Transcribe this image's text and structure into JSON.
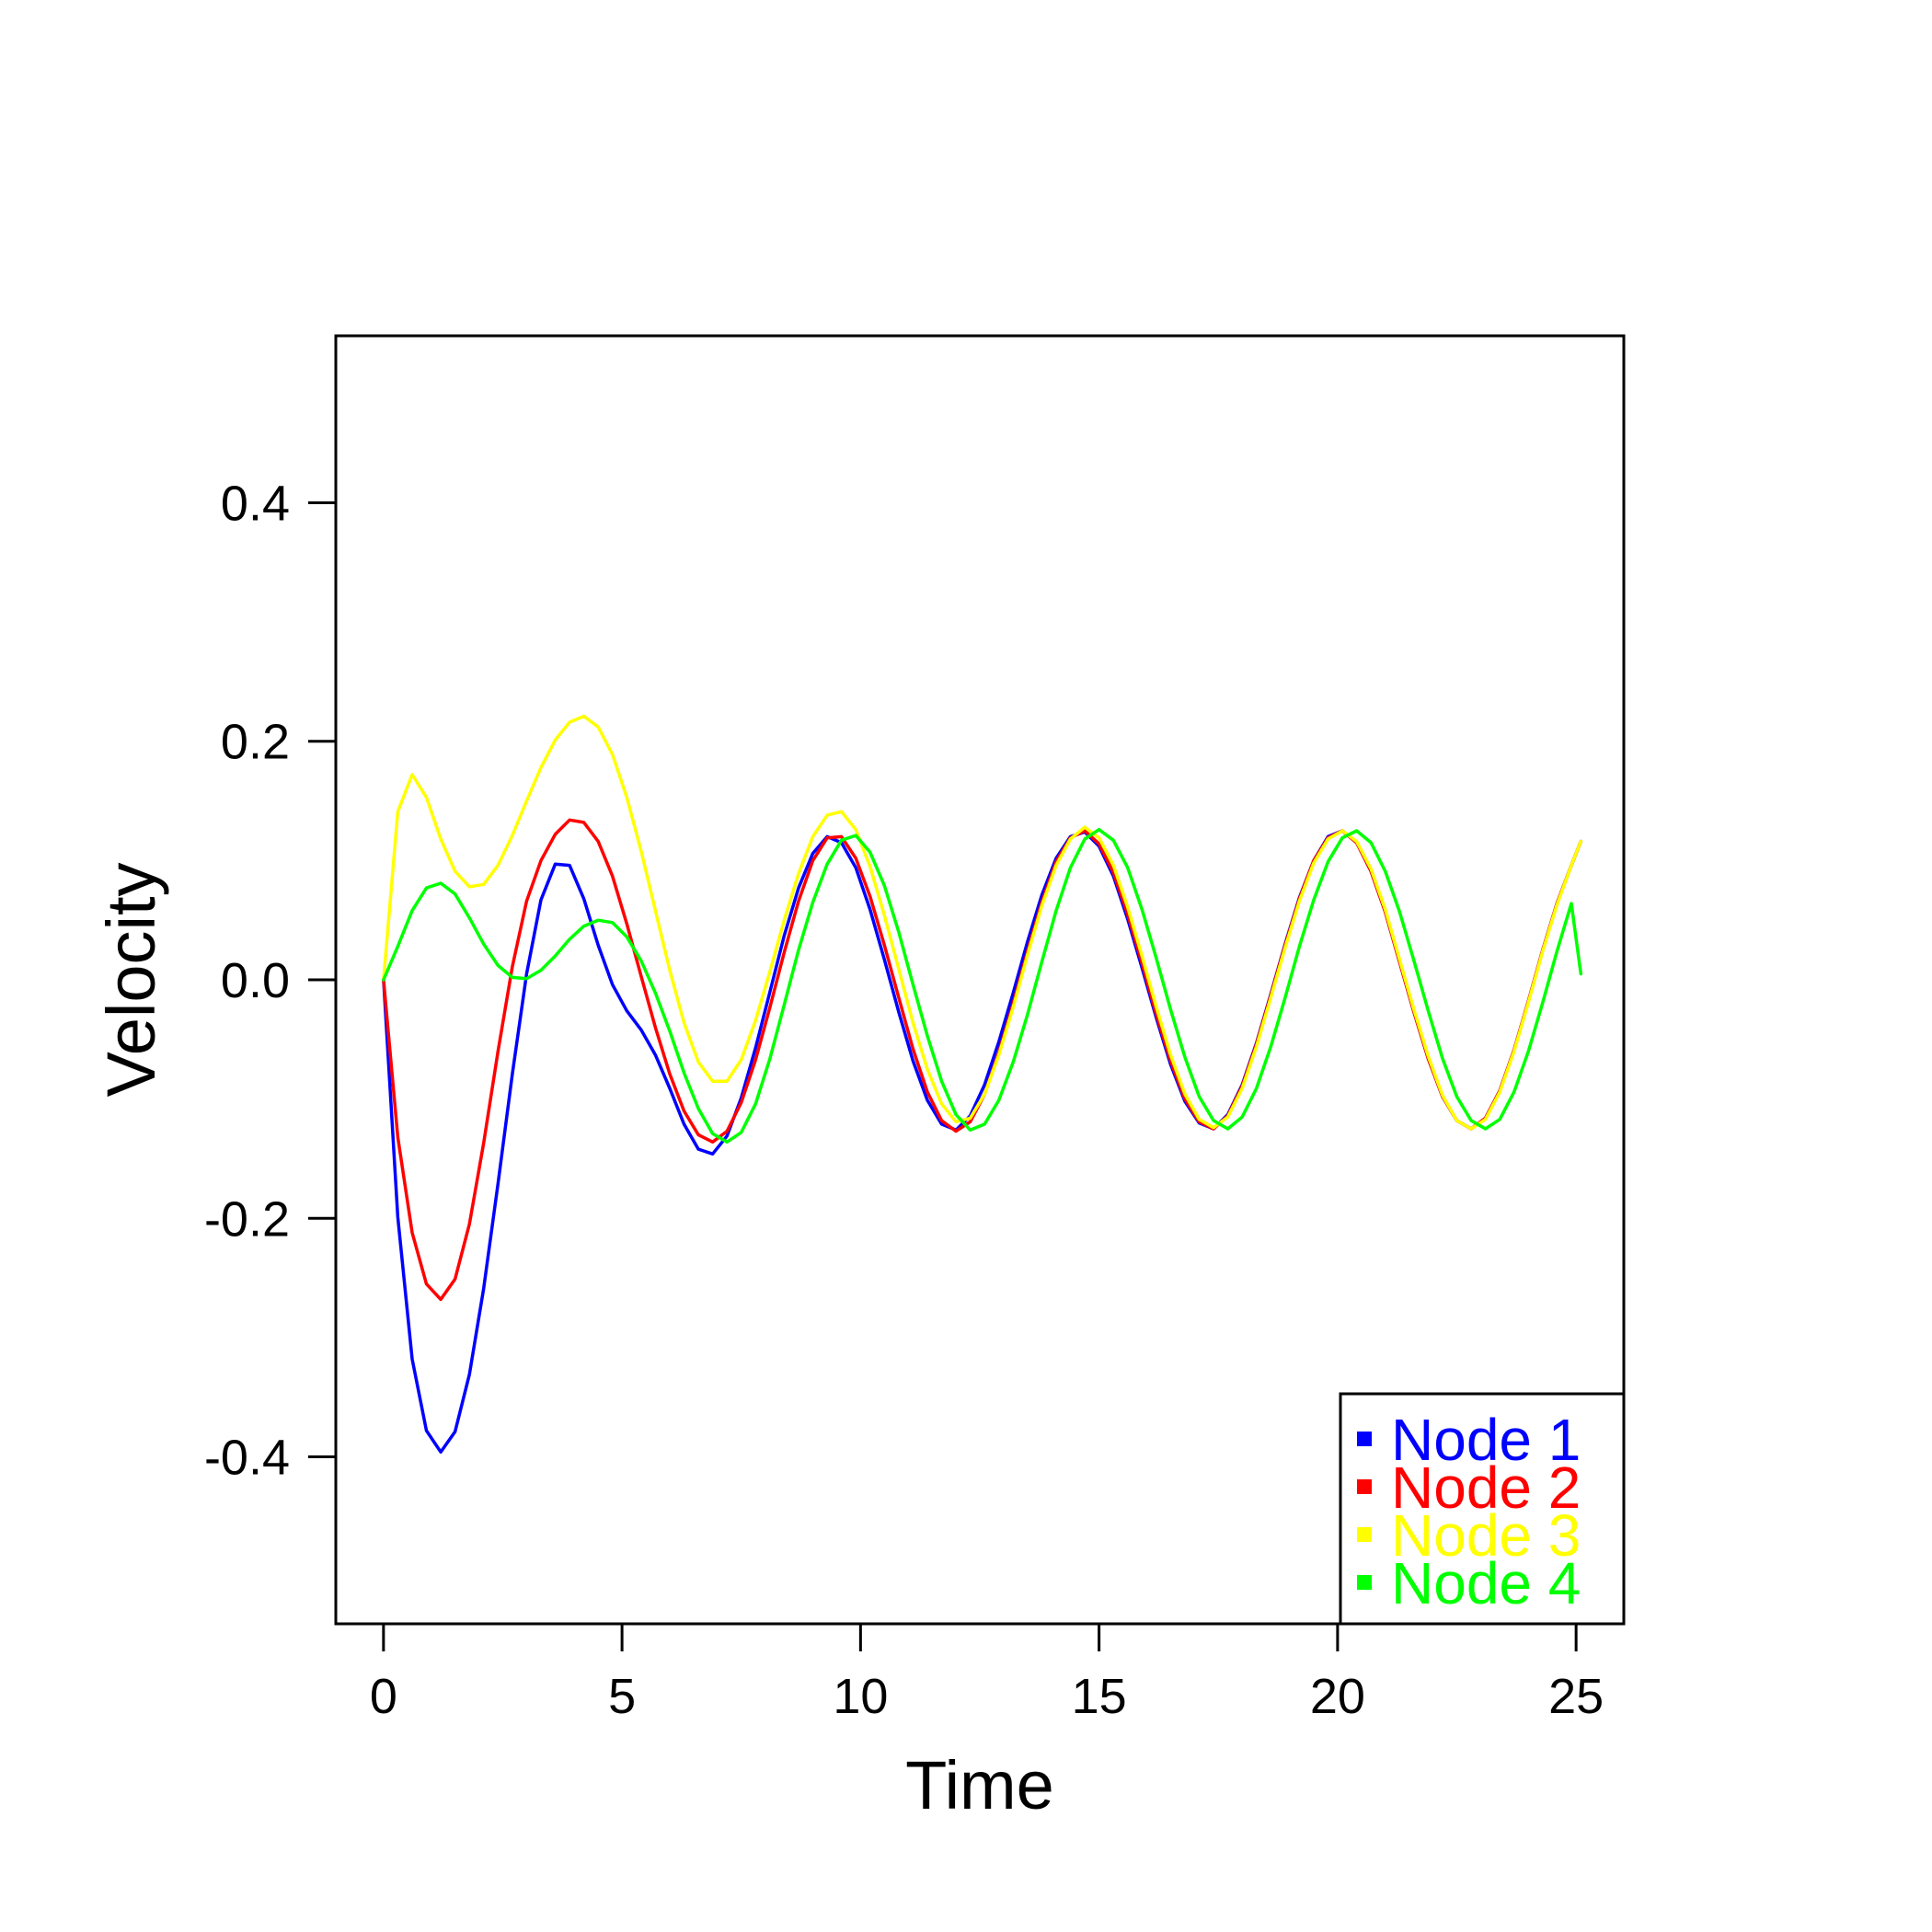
{
  "chart_data": {
    "type": "line",
    "xlabel": "Time",
    "ylabel": "Velocity",
    "xlim": [
      -1,
      26
    ],
    "ylim": [
      -0.54,
      0.54
    ],
    "xticks": [
      0,
      5,
      10,
      15,
      20,
      25
    ],
    "xtick_labels": [
      "0",
      "5",
      "10",
      "15",
      "20",
      "25"
    ],
    "yticks": [
      -0.4,
      -0.2,
      0.0,
      0.2,
      0.4
    ],
    "ytick_labels": [
      "-0.4",
      "-0.2",
      "0.0",
      "0.2",
      "0.4"
    ],
    "grid": false,
    "legend_position": "bottom-right",
    "series": [
      {
        "name": "Node 1",
        "color": "#0000ff",
        "x": [
          0,
          0.3,
          0.6,
          0.9,
          1.2,
          1.5,
          1.8,
          2.1,
          2.4,
          2.7,
          3.0,
          3.3,
          3.6,
          3.9,
          4.2,
          4.5,
          4.8,
          5.1,
          5.4,
          5.7,
          6.0,
          6.3,
          6.6,
          6.9,
          7.2,
          7.5,
          7.8,
          8.1,
          8.4,
          8.7,
          9.0,
          9.3,
          9.6,
          9.9,
          10.2,
          10.5,
          10.8,
          11.1,
          11.4,
          11.7,
          12.0,
          12.3,
          12.6,
          12.9,
          13.2,
          13.5,
          13.8,
          14.1,
          14.4,
          14.7,
          15.0,
          15.3,
          15.6,
          15.9,
          16.2,
          16.5,
          16.8,
          17.1,
          17.4,
          17.7,
          18.0,
          18.3,
          18.6,
          18.9,
          19.2,
          19.5,
          19.8,
          20.1,
          20.4,
          20.7,
          21.0,
          21.3,
          21.6,
          21.9,
          22.2,
          22.5,
          22.8,
          23.1,
          23.4,
          23.7,
          24.0,
          24.3,
          24.6,
          24.9,
          25.1
        ],
        "y": [
          0.0,
          -0.199,
          -0.318,
          -0.378,
          -0.396,
          -0.379,
          -0.331,
          -0.259,
          -0.171,
          -0.079,
          0.005,
          0.067,
          0.097,
          0.096,
          0.068,
          0.029,
          -0.004,
          -0.026,
          -0.042,
          -0.063,
          -0.091,
          -0.121,
          -0.142,
          -0.146,
          -0.131,
          -0.099,
          -0.057,
          -0.01,
          0.037,
          0.077,
          0.106,
          0.12,
          0.115,
          0.094,
          0.059,
          0.017,
          -0.027,
          -0.068,
          -0.101,
          -0.121,
          -0.126,
          -0.114,
          -0.088,
          -0.052,
          -0.011,
          0.032,
          0.071,
          0.102,
          0.12,
          0.124,
          0.112,
          0.087,
          0.051,
          0.01,
          -0.032,
          -0.071,
          -0.102,
          -0.12,
          -0.125,
          -0.113,
          -0.088,
          -0.053,
          -0.012,
          0.03,
          0.069,
          0.1,
          0.12,
          0.125,
          0.115,
          0.091,
          0.057,
          0.015,
          -0.027,
          -0.066,
          -0.098,
          -0.118,
          -0.125,
          -0.116,
          -0.093,
          -0.059,
          -0.018,
          0.025,
          0.064,
          0.096,
          0.116
        ]
      },
      {
        "name": "Node 2",
        "color": "#ff0000",
        "x": [
          0,
          0.3,
          0.6,
          0.9,
          1.2,
          1.5,
          1.8,
          2.1,
          2.4,
          2.7,
          3.0,
          3.3,
          3.6,
          3.9,
          4.2,
          4.5,
          4.8,
          5.1,
          5.4,
          5.7,
          6.0,
          6.3,
          6.6,
          6.9,
          7.2,
          7.5,
          7.8,
          8.1,
          8.4,
          8.7,
          9.0,
          9.3,
          9.6,
          9.9,
          10.2,
          10.5,
          10.8,
          11.1,
          11.4,
          11.7,
          12.0,
          12.3,
          12.6,
          12.9,
          13.2,
          13.5,
          13.8,
          14.1,
          14.4,
          14.7,
          15.0,
          15.3,
          15.6,
          15.9,
          16.2,
          16.5,
          16.8,
          17.1,
          17.4,
          17.7,
          18.0,
          18.3,
          18.6,
          18.9,
          19.2,
          19.5,
          19.8,
          20.1,
          20.4,
          20.7,
          21.0,
          21.3,
          21.6,
          21.9,
          22.2,
          22.5,
          22.8,
          23.1,
          23.4,
          23.7,
          24.0,
          24.3,
          24.6,
          24.9,
          25.1
        ],
        "y": [
          0.0,
          -0.132,
          -0.212,
          -0.255,
          -0.268,
          -0.251,
          -0.205,
          -0.137,
          -0.06,
          0.011,
          0.066,
          0.1,
          0.122,
          0.134,
          0.132,
          0.116,
          0.087,
          0.047,
          0.003,
          -0.04,
          -0.079,
          -0.11,
          -0.13,
          -0.136,
          -0.127,
          -0.103,
          -0.067,
          -0.023,
          0.023,
          0.066,
          0.1,
          0.119,
          0.12,
          0.102,
          0.07,
          0.029,
          -0.015,
          -0.058,
          -0.094,
          -0.118,
          -0.127,
          -0.119,
          -0.096,
          -0.061,
          -0.02,
          0.024,
          0.065,
          0.099,
          0.119,
          0.125,
          0.114,
          0.09,
          0.055,
          0.014,
          -0.029,
          -0.068,
          -0.1,
          -0.119,
          -0.125,
          -0.114,
          -0.089,
          -0.054,
          -0.013,
          0.029,
          0.068,
          0.1,
          0.119,
          0.125,
          0.115,
          0.091,
          0.057,
          0.015,
          -0.027,
          -0.066,
          -0.098,
          -0.118,
          -0.125,
          -0.116,
          -0.093,
          -0.059,
          -0.018,
          0.025,
          0.064,
          0.096,
          0.116
        ]
      },
      {
        "name": "Node 3",
        "color": "#ffff00",
        "x": [
          0,
          0.3,
          0.6,
          0.9,
          1.2,
          1.5,
          1.8,
          2.1,
          2.4,
          2.7,
          3.0,
          3.3,
          3.6,
          3.9,
          4.2,
          4.5,
          4.8,
          5.1,
          5.4,
          5.7,
          6.0,
          6.3,
          6.6,
          6.9,
          7.2,
          7.5,
          7.8,
          8.1,
          8.4,
          8.7,
          9.0,
          9.3,
          9.6,
          9.9,
          10.2,
          10.5,
          10.8,
          11.1,
          11.4,
          11.7,
          12.0,
          12.3,
          12.6,
          12.9,
          13.2,
          13.5,
          13.8,
          14.1,
          14.4,
          14.7,
          15.0,
          15.3,
          15.6,
          15.9,
          16.2,
          16.5,
          16.8,
          17.1,
          17.4,
          17.7,
          18.0,
          18.3,
          18.6,
          18.9,
          19.2,
          19.5,
          19.8,
          20.1,
          20.4,
          20.7,
          21.0,
          21.3,
          21.6,
          21.9,
          22.2,
          22.5,
          22.8,
          23.1,
          23.4,
          23.7,
          24.0,
          24.3,
          24.6,
          24.9,
          25.1
        ],
        "y": [
          0.0,
          0.141,
          0.172,
          0.153,
          0.118,
          0.091,
          0.078,
          0.08,
          0.096,
          0.121,
          0.15,
          0.178,
          0.201,
          0.216,
          0.221,
          0.212,
          0.189,
          0.153,
          0.108,
          0.058,
          0.008,
          -0.036,
          -0.069,
          -0.085,
          -0.085,
          -0.067,
          -0.034,
          0.007,
          0.05,
          0.089,
          0.12,
          0.138,
          0.141,
          0.126,
          0.095,
          0.054,
          0.009,
          -0.036,
          -0.075,
          -0.104,
          -0.119,
          -0.116,
          -0.096,
          -0.063,
          -0.023,
          0.021,
          0.062,
          0.096,
          0.118,
          0.128,
          0.119,
          0.096,
          0.061,
          0.02,
          -0.023,
          -0.063,
          -0.096,
          -0.117,
          -0.124,
          -0.115,
          -0.091,
          -0.056,
          -0.015,
          0.027,
          0.066,
          0.098,
          0.118,
          0.125,
          0.116,
          0.093,
          0.059,
          0.017,
          -0.025,
          -0.064,
          -0.097,
          -0.118,
          -0.125,
          -0.117,
          -0.094,
          -0.06,
          -0.019,
          0.024,
          0.063,
          0.096,
          0.116
        ]
      },
      {
        "name": "Node 4",
        "color": "#00ff00",
        "x": [
          0,
          0.3,
          0.6,
          0.9,
          1.2,
          1.5,
          1.8,
          2.1,
          2.4,
          2.7,
          3.0,
          3.3,
          3.6,
          3.9,
          4.2,
          4.5,
          4.8,
          5.1,
          5.4,
          5.7,
          6.0,
          6.3,
          6.6,
          6.9,
          7.2,
          7.5,
          7.8,
          8.1,
          8.4,
          8.7,
          9.0,
          9.3,
          9.6,
          9.9,
          10.2,
          10.5,
          10.8,
          11.1,
          11.4,
          11.7,
          12.0,
          12.3,
          12.6,
          12.9,
          13.2,
          13.5,
          13.8,
          14.1,
          14.4,
          14.7,
          15.0,
          15.3,
          15.6,
          15.9,
          16.2,
          16.5,
          16.8,
          17.1,
          17.4,
          17.7,
          18.0,
          18.3,
          18.6,
          18.9,
          19.2,
          19.5,
          19.8,
          20.1,
          20.4,
          20.7,
          21.0,
          21.3,
          21.6,
          21.9,
          22.2,
          22.5,
          22.8,
          23.1,
          23.4,
          23.7,
          24.0,
          24.3,
          24.6,
          24.9,
          25.1
        ],
        "y": [
          0.0,
          0.028,
          0.058,
          0.077,
          0.081,
          0.072,
          0.052,
          0.03,
          0.012,
          0.002,
          0.001,
          0.008,
          0.02,
          0.034,
          0.045,
          0.05,
          0.048,
          0.036,
          0.016,
          -0.011,
          -0.043,
          -0.078,
          -0.108,
          -0.129,
          -0.136,
          -0.128,
          -0.104,
          -0.066,
          -0.021,
          0.025,
          0.065,
          0.097,
          0.117,
          0.121,
          0.107,
          0.079,
          0.04,
          -0.004,
          -0.047,
          -0.085,
          -0.113,
          -0.126,
          -0.121,
          -0.101,
          -0.069,
          -0.029,
          0.015,
          0.058,
          0.094,
          0.118,
          0.126,
          0.117,
          0.094,
          0.059,
          0.018,
          -0.025,
          -0.065,
          -0.098,
          -0.118,
          -0.125,
          -0.115,
          -0.091,
          -0.056,
          -0.015,
          0.028,
          0.067,
          0.099,
          0.119,
          0.125,
          0.115,
          0.091,
          0.057,
          0.016,
          -0.026,
          -0.066,
          -0.098,
          -0.118,
          -0.125,
          -0.117,
          -0.094,
          -0.06,
          -0.019,
          0.024,
          0.064,
          0.005
        ]
      }
    ]
  }
}
